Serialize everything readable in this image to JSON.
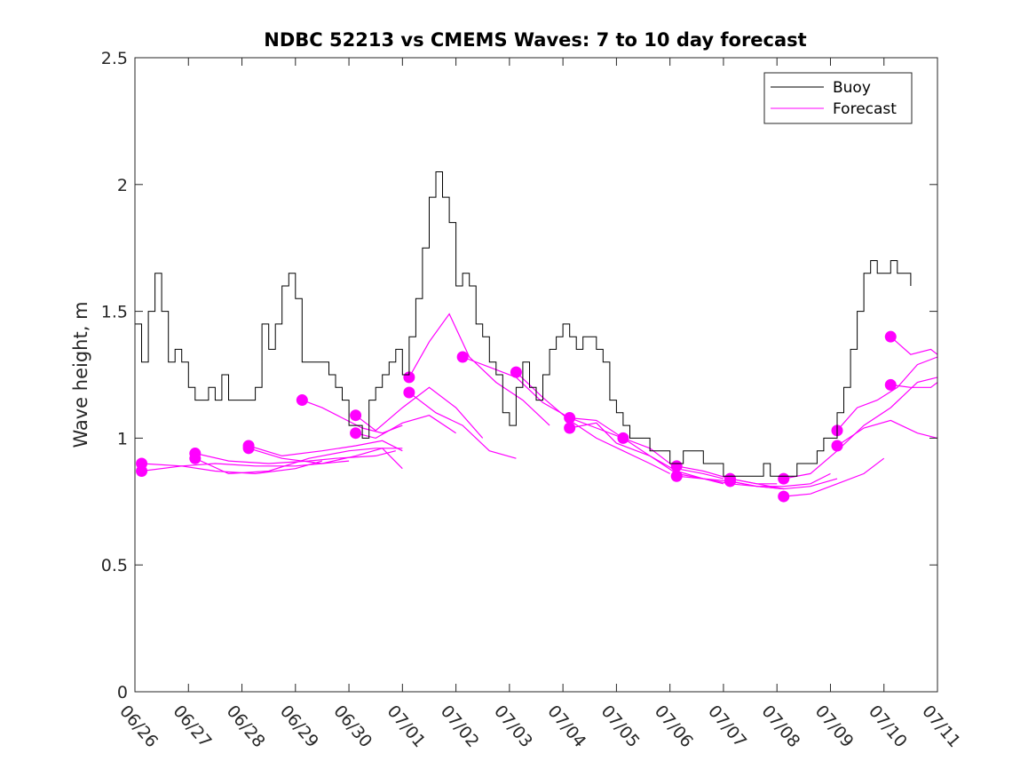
{
  "chart_data": {
    "type": "line",
    "title": "NDBC 52213 vs CMEMS Waves: 7 to 10 day forecast",
    "xlabel": "",
    "ylabel": "Wave height, m",
    "xlim": [
      "06/26",
      "07/11"
    ],
    "ylim": [
      0,
      2.5
    ],
    "x_tick_labels": [
      "06/26",
      "06/27",
      "06/28",
      "06/29",
      "06/30",
      "07/01",
      "07/02",
      "07/03",
      "07/04",
      "07/05",
      "07/06",
      "07/07",
      "07/08",
      "07/09",
      "07/10",
      "07/11"
    ],
    "y_tick_labels": [
      "0",
      "0.5",
      "1",
      "1.5",
      "2",
      "2.5"
    ],
    "grid": false,
    "legend_position": "top-right",
    "colors": {
      "buoy": "#000000",
      "forecast": "#ff00ff"
    },
    "buoy": {
      "name": "Buoy",
      "x": [
        "06/26 00:00",
        "06/26 03:00",
        "06/26 06:00",
        "06/26 09:00",
        "06/26 12:00",
        "06/26 15:00",
        "06/26 18:00",
        "06/26 21:00",
        "06/27 00:00",
        "06/27 03:00",
        "06/27 06:00",
        "06/27 09:00",
        "06/27 12:00",
        "06/27 15:00",
        "06/27 18:00",
        "06/27 21:00",
        "06/28 00:00",
        "06/28 03:00",
        "06/28 06:00",
        "06/28 09:00",
        "06/28 12:00",
        "06/28 15:00",
        "06/28 18:00",
        "06/28 21:00",
        "06/29 00:00",
        "06/29 03:00",
        "06/29 06:00",
        "06/29 09:00",
        "06/29 12:00",
        "06/29 15:00",
        "06/29 18:00",
        "06/29 21:00",
        "06/30 00:00",
        "06/30 03:00",
        "06/30 06:00",
        "06/30 09:00",
        "06/30 12:00",
        "06/30 15:00",
        "06/30 18:00",
        "06/30 21:00",
        "07/01 00:00",
        "07/01 03:00",
        "07/01 06:00",
        "07/01 09:00",
        "07/01 12:00",
        "07/01 15:00",
        "07/01 18:00",
        "07/01 21:00",
        "07/02 00:00",
        "07/02 03:00",
        "07/02 06:00",
        "07/02 09:00",
        "07/02 12:00",
        "07/02 15:00",
        "07/02 18:00",
        "07/02 21:00",
        "07/03 00:00",
        "07/03 03:00",
        "07/03 06:00",
        "07/03 09:00",
        "07/03 12:00",
        "07/03 15:00",
        "07/03 18:00",
        "07/03 21:00",
        "07/04 00:00",
        "07/04 03:00",
        "07/04 06:00",
        "07/04 09:00",
        "07/04 12:00",
        "07/04 15:00",
        "07/04 18:00",
        "07/04 21:00",
        "07/05 00:00",
        "07/05 03:00",
        "07/05 06:00",
        "07/05 09:00",
        "07/05 12:00",
        "07/05 15:00",
        "07/05 18:00",
        "07/05 21:00",
        "07/06 00:00",
        "07/06 03:00",
        "07/06 06:00",
        "07/06 09:00",
        "07/06 12:00",
        "07/06 15:00",
        "07/06 18:00",
        "07/06 21:00",
        "07/07 00:00",
        "07/07 03:00",
        "07/07 06:00",
        "07/07 09:00",
        "07/07 12:00",
        "07/07 15:00",
        "07/07 18:00",
        "07/07 21:00",
        "07/08 00:00",
        "07/08 03:00",
        "07/08 06:00",
        "07/08 09:00",
        "07/08 12:00",
        "07/08 15:00",
        "07/08 18:00",
        "07/08 21:00",
        "07/09 00:00",
        "07/09 03:00",
        "07/09 06:00",
        "07/09 09:00",
        "07/09 12:00",
        "07/09 15:00",
        "07/09 18:00",
        "07/09 21:00",
        "07/10 00:00",
        "07/10 03:00",
        "07/10 06:00",
        "07/10 09:00",
        "07/10 12:00"
      ],
      "values": [
        1.45,
        1.3,
        1.5,
        1.65,
        1.5,
        1.3,
        1.35,
        1.3,
        1.2,
        1.15,
        1.15,
        1.2,
        1.15,
        1.25,
        1.15,
        1.15,
        1.15,
        1.15,
        1.2,
        1.45,
        1.35,
        1.45,
        1.6,
        1.65,
        1.55,
        1.3,
        1.3,
        1.3,
        1.3,
        1.25,
        1.2,
        1.15,
        1.05,
        1.05,
        1.0,
        1.15,
        1.2,
        1.25,
        1.3,
        1.35,
        1.25,
        1.4,
        1.55,
        1.75,
        1.95,
        2.05,
        1.95,
        1.85,
        1.6,
        1.65,
        1.6,
        1.45,
        1.4,
        1.3,
        1.25,
        1.1,
        1.05,
        1.2,
        1.3,
        1.2,
        1.15,
        1.25,
        1.35,
        1.4,
        1.45,
        1.4,
        1.35,
        1.4,
        1.4,
        1.35,
        1.3,
        1.15,
        1.1,
        1.05,
        1.0,
        1.0,
        1.0,
        0.95,
        0.95,
        0.95,
        0.9,
        0.9,
        0.95,
        0.95,
        0.95,
        0.9,
        0.9,
        0.9,
        0.85,
        0.85,
        0.85,
        0.85,
        0.85,
        0.85,
        0.9,
        0.85,
        0.85,
        0.85,
        0.85,
        0.9,
        0.9,
        0.9,
        0.95,
        1.0,
        1.0,
        1.1,
        1.2,
        1.35,
        1.5,
        1.65,
        1.7,
        1.65,
        1.65,
        1.7,
        1.65,
        1.65,
        1.6
      ]
    },
    "forecast": {
      "name": "Forecast",
      "runs": [
        {
          "x": [
            "06/26 03:00",
            "06/26 21:00",
            "06/27 12:00",
            "06/28 06:00",
            "06/29 00:00",
            "06/29 12:00",
            "06/30 00:00"
          ],
          "values": [
            0.9,
            0.89,
            0.9,
            0.89,
            0.89,
            0.9,
            0.91
          ]
        },
        {
          "x": [
            "06/26 03:00",
            "06/26 21:00",
            "06/27 12:00",
            "06/28 06:00",
            "06/29 00:00",
            "06/29 12:00"
          ],
          "values": [
            0.87,
            0.89,
            0.87,
            0.86,
            0.88,
            0.91
          ]
        },
        {
          "x": [
            "06/27 03:00",
            "06/27 18:00",
            "06/28 12:00",
            "06/29 06:00",
            "06/29 18:00",
            "06/30 12:00",
            "06/30 21:00"
          ],
          "values": [
            0.94,
            0.91,
            0.9,
            0.91,
            0.92,
            0.93,
            0.95
          ]
        },
        {
          "x": [
            "06/27 03:00",
            "06/27 18:00",
            "06/28 12:00",
            "06/29 06:00",
            "06/30 00:00",
            "06/30 12:00",
            "07/01 00:00"
          ],
          "values": [
            0.92,
            0.86,
            0.87,
            0.92,
            0.95,
            0.96,
            0.96
          ]
        },
        {
          "x": [
            "06/28 03:00",
            "06/28 18:00",
            "06/29 12:00",
            "06/30 03:00",
            "06/30 15:00",
            "07/01 00:00"
          ],
          "values": [
            0.97,
            0.93,
            0.95,
            0.97,
            0.99,
            0.95
          ]
        },
        {
          "x": [
            "06/28 03:00",
            "06/28 18:00",
            "06/29 12:00",
            "06/30 03:00",
            "06/30 15:00",
            "07/01 00:00"
          ],
          "values": [
            0.96,
            0.92,
            0.9,
            0.93,
            0.96,
            0.88
          ]
        },
        {
          "x": [
            "06/29 03:00",
            "06/29 12:00",
            "06/29 21:00",
            "06/30 06:00",
            "06/30 15:00",
            "07/01 00:00"
          ],
          "values": [
            1.15,
            1.12,
            1.08,
            1.04,
            1.02,
            1.05
          ]
        },
        {
          "x": [
            "06/30 03:00",
            "06/30 12:00",
            "07/01 00:00",
            "07/01 12:00",
            "07/02 00:00",
            "07/02 12:00"
          ],
          "values": [
            1.09,
            1.03,
            1.12,
            1.2,
            1.12,
            1.0
          ]
        },
        {
          "x": [
            "06/30 03:00",
            "06/30 12:00",
            "07/01 00:00",
            "07/01 12:00",
            "07/02 00:00"
          ],
          "values": [
            1.02,
            1.0,
            1.06,
            1.09,
            1.02
          ]
        },
        {
          "x": [
            "07/01 03:00",
            "07/01 12:00",
            "07/01 21:00",
            "07/02 06:00",
            "07/02 18:00",
            "07/03 06:00",
            "07/03 18:00"
          ],
          "values": [
            1.24,
            1.38,
            1.49,
            1.32,
            1.22,
            1.15,
            1.05
          ]
        },
        {
          "x": [
            "07/01 03:00",
            "07/01 15:00",
            "07/02 03:00",
            "07/02 15:00",
            "07/03 03:00"
          ],
          "values": [
            1.18,
            1.1,
            1.05,
            0.95,
            0.92
          ]
        },
        {
          "x": [
            "07/02 03:00",
            "07/02 15:00",
            "07/03 03:00",
            "07/03 15:00",
            "07/04 03:00",
            "07/04 15:00",
            "07/05 03:00"
          ],
          "values": [
            1.32,
            1.28,
            1.24,
            1.14,
            1.08,
            1.04,
            1.0
          ]
        },
        {
          "x": [
            "07/03 03:00",
            "07/03 15:00",
            "07/04 03:00",
            "07/04 15:00",
            "07/05 03:00",
            "07/05 15:00",
            "07/06 00:00"
          ],
          "values": [
            1.26,
            1.16,
            1.07,
            1.0,
            0.95,
            0.9,
            0.86
          ]
        },
        {
          "x": [
            "07/04 03:00",
            "07/04 15:00",
            "07/05 03:00",
            "07/05 15:00",
            "07/06 03:00",
            "07/06 15:00",
            "07/07 00:00"
          ],
          "values": [
            1.08,
            1.07,
            1.0,
            0.96,
            0.88,
            0.86,
            0.84
          ]
        },
        {
          "x": [
            "07/04 03:00",
            "07/04 15:00",
            "07/05 00:00",
            "07/05 15:00",
            "07/06 03:00",
            "07/06 15:00",
            "07/07 00:00"
          ],
          "values": [
            1.04,
            1.06,
            0.98,
            0.93,
            0.86,
            0.84,
            0.82
          ]
        },
        {
          "x": [
            "07/05 03:00",
            "07/05 15:00",
            "07/06 03:00",
            "07/06 15:00",
            "07/07 03:00",
            "07/07 15:00",
            "07/08 03:00"
          ],
          "values": [
            1.0,
            0.93,
            0.87,
            0.84,
            0.82,
            0.81,
            0.8
          ]
        },
        {
          "x": [
            "07/06 03:00",
            "07/06 15:00",
            "07/07 03:00",
            "07/07 15:00",
            "07/08 00:00"
          ],
          "values": [
            0.89,
            0.87,
            0.84,
            0.82,
            0.82
          ]
        },
        {
          "x": [
            "07/06 03:00",
            "07/06 15:00",
            "07/07 03:00",
            "07/07 15:00",
            "07/08 03:00"
          ],
          "values": [
            0.85,
            0.84,
            0.83,
            0.81,
            0.8
          ]
        },
        {
          "x": [
            "07/07 03:00",
            "07/07 15:00",
            "07/08 03:00",
            "07/08 15:00",
            "07/09 03:00"
          ],
          "values": [
            0.84,
            0.82,
            0.8,
            0.81,
            0.84
          ]
        },
        {
          "x": [
            "07/07 03:00",
            "07/07 15:00",
            "07/08 03:00",
            "07/08 15:00",
            "07/09 00:00"
          ],
          "values": [
            0.83,
            0.81,
            0.81,
            0.82,
            0.86
          ]
        },
        {
          "x": [
            "07/08 03:00",
            "07/08 15:00",
            "07/09 03:00",
            "07/09 15:00",
            "07/10 03:00",
            "07/10 15:00",
            "07/11 00:00"
          ],
          "values": [
            0.84,
            0.86,
            0.95,
            1.05,
            1.12,
            1.22,
            1.24
          ]
        },
        {
          "x": [
            "07/08 03:00",
            "07/08 15:00",
            "07/09 03:00",
            "07/09 15:00",
            "07/10 00:00"
          ],
          "values": [
            0.77,
            0.78,
            0.82,
            0.86,
            0.92
          ]
        },
        {
          "x": [
            "07/09 03:00",
            "07/09 12:00",
            "07/09 21:00",
            "07/10 06:00",
            "07/10 15:00",
            "07/11 00:00"
          ],
          "values": [
            1.03,
            1.12,
            1.15,
            1.2,
            1.29,
            1.32
          ]
        },
        {
          "x": [
            "07/09 03:00",
            "07/09 15:00",
            "07/10 03:00",
            "07/10 15:00",
            "07/11 00:00"
          ],
          "values": [
            0.97,
            1.04,
            1.07,
            1.02,
            1.0
          ]
        },
        {
          "x": [
            "07/10 03:00",
            "07/10 12:00",
            "07/10 21:00",
            "07/11 00:00"
          ],
          "values": [
            1.4,
            1.33,
            1.35,
            1.33
          ]
        },
        {
          "x": [
            "07/10 03:00",
            "07/10 12:00",
            "07/10 21:00",
            "07/11 00:00"
          ],
          "values": [
            1.21,
            1.2,
            1.2,
            1.22
          ]
        }
      ]
    }
  }
}
